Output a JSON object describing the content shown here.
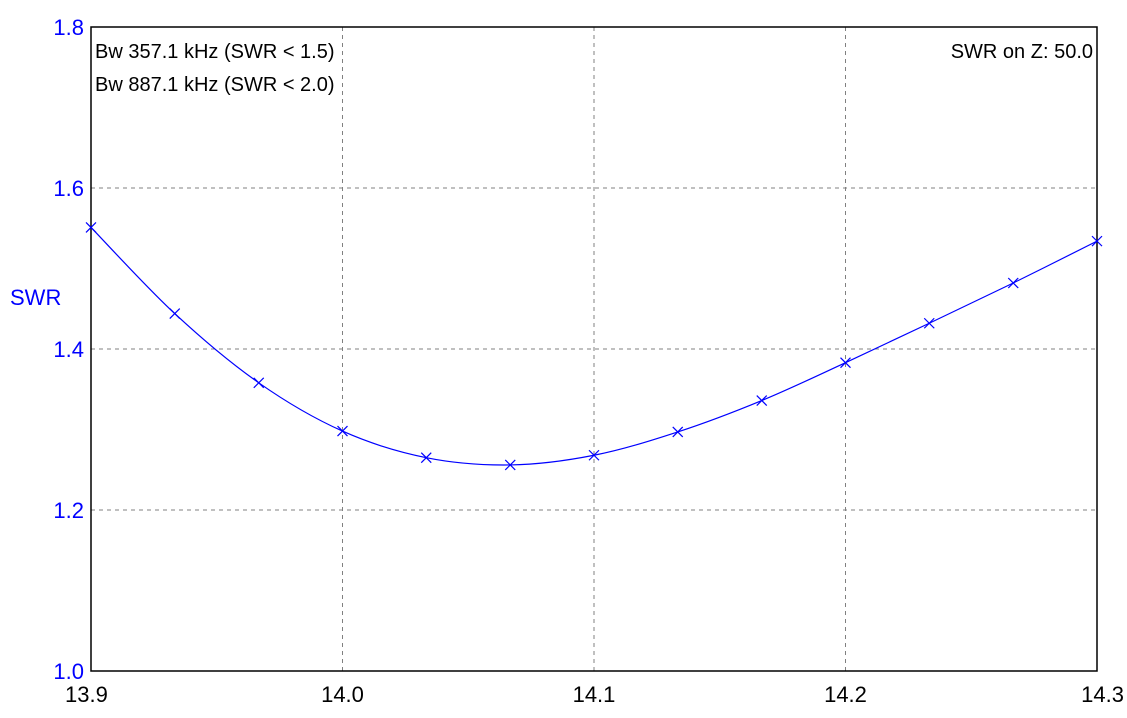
{
  "chart_data": {
    "type": "line",
    "title": "",
    "xlabel": "",
    "ylabel": "SWR",
    "xlim": [
      13.9,
      14.3
    ],
    "ylim": [
      1.0,
      1.8
    ],
    "grid": true,
    "x_ticks": [
      "13.9",
      "14.0",
      "14.1",
      "14.2",
      "14.3"
    ],
    "y_ticks": [
      "1.0",
      "1.2",
      "1.4",
      "1.6",
      "1.8"
    ],
    "annotations": {
      "bw_15": "Bw 357.1 kHz (SWR < 1.5)",
      "bw_20": "Bw 887.1 kHz (SWR < 2.0)",
      "swr_z": "SWR on Z: 50.0"
    },
    "series": [
      {
        "color": "#0000ff",
        "marker": "x",
        "x": [
          13.9,
          13.9333,
          13.9667,
          14.0,
          14.0333,
          14.0667,
          14.1,
          14.1333,
          14.1667,
          14.2,
          14.2333,
          14.2667,
          14.3
        ],
        "y": [
          1.551,
          1.444,
          1.358,
          1.298,
          1.265,
          1.256,
          1.268,
          1.297,
          1.336,
          1.383,
          1.432,
          1.482,
          1.534
        ]
      }
    ]
  }
}
